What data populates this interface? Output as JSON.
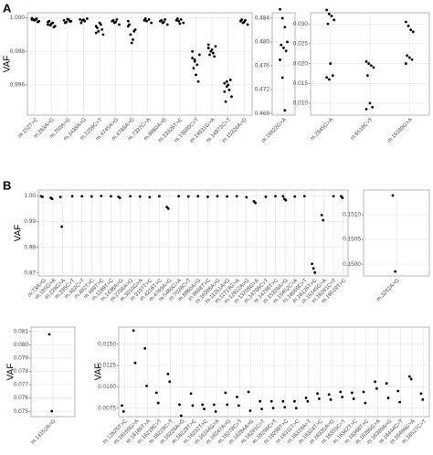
{
  "chart_data": [
    {
      "type": "strip",
      "panel": "A",
      "ylabel": "VAF",
      "categories": [
        "m.152T>C",
        "m.263A>G",
        "m.750A>G",
        "m.1438A>G",
        "m.2259C>T",
        "m.4745A>G",
        "m.4769A>G",
        "m.7337G>A",
        "m.8860A>G",
        "m.13326T>C",
        "m.13680C>T",
        "m.14631G>A",
        "m.14872C>T",
        "m.15326A>G"
      ],
      "values": [
        [
          0.9999,
          0.99985,
          0.99995,
          0.9998,
          0.99992,
          0.99988,
          0.99975,
          0.99998
        ],
        [
          0.9996,
          0.99955,
          0.9997,
          0.9995,
          0.9998,
          0.99965,
          0.99945,
          0.99975
        ],
        [
          0.99985,
          0.99975,
          0.9999,
          0.9998,
          0.9997,
          0.99992,
          0.99978
        ],
        [
          0.9999,
          0.99985,
          0.9998,
          0.99995,
          0.9997,
          0.99988
        ],
        [
          0.9995,
          0.9992,
          0.9996,
          0.999,
          0.9994,
          0.9997,
          0.9993,
          0.9991
        ],
        [
          0.9998,
          0.9997,
          0.9999,
          0.9996,
          0.99985,
          0.99975
        ],
        [
          0.9995,
          0.999,
          0.9987,
          0.9993,
          0.9996,
          0.9985,
          0.9992,
          0.9998
        ],
        [
          0.99985,
          0.9998,
          0.9999,
          0.9997,
          0.99995
        ],
        [
          0.9998,
          0.9997,
          0.9999,
          0.9996,
          0.99985,
          0.99975
        ],
        [
          0.99985,
          0.9998,
          0.9999,
          0.9997,
          0.99995,
          0.99965
        ],
        [
          0.9976,
          0.9974,
          0.9972,
          0.9978,
          0.997,
          0.9966,
          0.9962,
          0.998,
          0.9975
        ],
        [
          0.9982,
          0.998,
          0.9979,
          0.9983,
          0.9978,
          0.9981,
          0.9977,
          0.9984
        ],
        [
          0.9961,
          0.9959,
          0.9957,
          0.9953,
          0.995,
          0.996,
          0.9963,
          0.9956,
          0.9962
        ],
        [
          0.9998,
          0.9997,
          0.99985,
          0.9996,
          0.9999,
          0.99975
        ]
      ],
      "ylim": [
        0.9942,
        1.0003
      ],
      "yticks": [
        {
          "value": 1,
          "label": "1.000"
        },
        0.998,
        0.996
      ],
      "grid": true,
      "color": "#000000"
    },
    {
      "type": "strip",
      "categories": [
        "m.16622G>A"
      ],
      "values": [
        [
          0.4855,
          0.484,
          0.4825,
          0.48,
          0.4795,
          0.479,
          0.4785,
          0.477,
          0.474,
          0.4685
        ]
      ],
      "ylim": [
        0.4677,
        0.4849
      ],
      "yticks": [
        0.484,
        {
          "value": 0.48,
          "label": "0.480"
        },
        0.476,
        0.472,
        0.468
      ],
      "grid": true,
      "color": "#000000"
    },
    {
      "type": "strip",
      "categories": [
        "m.2645G>A",
        "m.6518C>T",
        "m.16189G>A"
      ],
      "values": [
        [
          0.0335,
          0.0325,
          0.032,
          0.031,
          0.03,
          0.02,
          0.017,
          0.0165,
          0.016
        ],
        [
          0.0205,
          0.02,
          0.0195,
          0.019,
          0.017,
          0.01,
          0.009,
          0.0085
        ],
        [
          0.0305,
          0.0295,
          0.0285,
          0.028,
          0.022,
          0.0215,
          0.021,
          0.02
        ]
      ],
      "ylim": [
        0.007,
        0.0328
      ],
      "yticks": [
        {
          "value": 0.03,
          "label": "0.030"
        },
        0.025,
        {
          "value": 0.02,
          "label": "0.020"
        },
        0.015,
        {
          "value": 0.01,
          "label": "0.010"
        }
      ],
      "grid": true,
      "color": "#000000"
    },
    {
      "type": "strip",
      "panel": "B",
      "ylabel": "VAF",
      "categories": [
        "m.73A>G",
        "m.185G>A",
        "m.228G>A",
        "m.295C>T",
        "m.462C>T",
        "m.482T>C",
        "m.489T>C",
        "m.1189T>C",
        "m.1438A>G",
        "m.2706A>G",
        "m.3010G>A",
        "m.3197T>C",
        "m.4216T>C",
        "m.4769A>G",
        "m.5460G>A",
        "m.7028C>T",
        "m.8860A>G",
        "m.9698T>C",
        "m.10398A>G",
        "m.11251A>G",
        "m.11719G>A",
        "m.12612A>G",
        "m.13708G>A",
        "m.14766C>T",
        "m.14798T>C",
        "m.15326A>G",
        "m.15452C>A",
        "m.16069C>T",
        "m.16126T>C",
        "m.16145G>A",
        "m.16261C>T",
        "m.16519T>C"
      ],
      "values": [
        [
          0.9998,
          0.9996
        ],
        [
          0.9992,
          0.9988
        ],
        [
          0.9995,
          0.988
        ],
        [
          0.9998
        ],
        [
          0.9998
        ],
        [
          0.9997
        ],
        [
          0.9999
        ],
        [
          0.9998
        ],
        [
          0.9996,
          0.9992
        ],
        [
          0.9998
        ],
        [
          0.9997
        ],
        [
          0.9994
        ],
        [
          0.9998
        ],
        [
          0.9956,
          0.995
        ],
        [
          0.9998
        ],
        [
          0.9997
        ],
        [
          0.9998
        ],
        [
          0.9996
        ],
        [
          0.9998
        ],
        [
          0.9997
        ],
        [
          0.9998
        ],
        [
          0.9994
        ],
        [
          0.9978,
          0.9972
        ],
        [
          0.9996
        ],
        [
          0.9998
        ],
        [
          0.9998,
          0.9988,
          0.9982
        ],
        [
          0.9997
        ],
        [
          0.9998
        ],
        [
          0.9736,
          0.9718,
          0.9702
        ],
        [
          0.9925,
          0.9905
        ],
        [
          0.9998
        ],
        [
          0.9998,
          0.9992
        ]
      ],
      "ylim": [
        0.9689,
        1.0022
      ],
      "yticks": [
        {
          "value": 1,
          "label": "1.00"
        },
        0.99,
        0.98,
        0.97
      ],
      "grid": true,
      "color": "#000000"
    },
    {
      "type": "strip",
      "categories": [
        "m.3242A>G"
      ],
      "values": [
        [
          0.15139,
          0.14985
        ]
      ],
      "ylim": [
        0.14976,
        0.1515
      ],
      "yticks": [
        {
          "value": 0.151,
          "label": "0.1510"
        },
        0.1505,
        {
          "value": 0.15,
          "label": "0.1500"
        }
      ],
      "grid": true,
      "color": "#000000"
    },
    {
      "type": "strip",
      "ylabel": "VAF",
      "categories": [
        "m.14152A>G"
      ],
      "values": [
        [
          0.0808,
          0.075
        ]
      ],
      "ylim": [
        0.07459,
        0.08134
      ],
      "yticks": [
        0.081,
        {
          "value": 0.08,
          "label": "0.080"
        },
        0.079,
        0.078,
        0.077,
        0.076,
        0.075
      ],
      "grid": true,
      "color": "#000000"
    },
    {
      "type": "strip",
      "ylabel": "VAF",
      "categories": [
        "m.12625T>C",
        "m.16159G>A",
        "m.16186T>A",
        "m.16218C>T",
        "m.16223C>T",
        "m.16226A>G",
        "m.16229T>C",
        "m.16232T>C",
        "m.16244G>A",
        "m.16247A>G",
        "m.16278C>T",
        "m.16284A>G",
        "m.16291C>T",
        "m.16296C>T",
        "m.16298T>C",
        "m.16311T>C",
        "m.16318A>T",
        "m.16324T>C",
        "m.16335A>G",
        "m.16355C>T",
        "m.16362T>C",
        "m.16368T>C",
        "m.16390G>A",
        "m.16399A>G",
        "m.16444C>T",
        "m.16496G>A",
        "m.16527C>T"
      ],
      "values": [
        [
          0.0078,
          0.0071
        ],
        [
          0.0166,
          0.0128
        ],
        [
          0.0145,
          0.0101
        ],
        [
          0.0093,
          0.0081
        ],
        [
          0.0115,
          0.0106
        ],
        [
          0.0079,
          0.0066
        ],
        [
          0.0092,
          0.0078
        ],
        [
          0.0079,
          0.0074
        ],
        [
          0.0079,
          0.0071
        ],
        [
          0.0093,
          0.0079
        ],
        [
          0.0088,
          0.0078
        ],
        [
          0.0094,
          0.0072
        ],
        [
          0.0083,
          0.0074
        ],
        [
          0.0083,
          0.0075
        ],
        [
          0.0083,
          0.0076
        ],
        [
          0.0083,
          0.0075
        ],
        [
          0.0087,
          0.0083
        ],
        [
          0.0092,
          0.0086
        ],
        [
          0.0091,
          0.0085
        ],
        [
          0.0094,
          0.0088
        ],
        [
          0.0093,
          0.0086
        ],
        [
          0.0094,
          0.0081
        ],
        [
          0.0106,
          0.0098
        ],
        [
          0.0104,
          0.0087
        ],
        [
          0.0095,
          0.0082
        ],
        [
          0.0112,
          0.0109
        ],
        [
          0.0092,
          0.0085
        ]
      ],
      "ylim": [
        0.0065,
        0.017
      ],
      "yticks": [
        {
          "value": 0.015,
          "label": "0.0150"
        },
        0.0125,
        {
          "value": 0.01,
          "label": "0.0100"
        },
        0.0075
      ],
      "grid": true,
      "color": "#000000"
    }
  ]
}
